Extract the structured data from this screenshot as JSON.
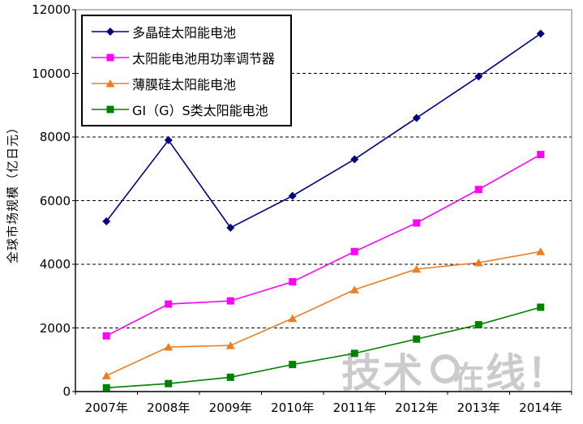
{
  "chart_data": {
    "type": "line",
    "title": "",
    "xlabel": "",
    "ylabel": "全球市场规模（亿日元）",
    "categories": [
      "2007年",
      "2008年",
      "2009年",
      "2010年",
      "2011年",
      "2012年",
      "2013年",
      "2014年"
    ],
    "ylim": [
      0,
      12000
    ],
    "yticks": [
      0,
      2000,
      4000,
      6000,
      8000,
      10000,
      12000
    ],
    "grid": "horizontal-dashed",
    "legend_position": "top-left-inside",
    "series": [
      {
        "name": "多晶硅太阳能电池",
        "color": "#000080",
        "marker": "diamond",
        "values": [
          5350,
          7900,
          5150,
          6150,
          7300,
          8600,
          9900,
          11250
        ]
      },
      {
        "name": "太阳能电池用功率调节器",
        "color": "#FF00FF",
        "marker": "square",
        "values": [
          1750,
          2750,
          2850,
          3450,
          4400,
          5300,
          6350,
          7450
        ]
      },
      {
        "name": "薄膜硅太阳能电池",
        "color": "#EE7D22",
        "marker": "triangle",
        "values": [
          500,
          1400,
          1450,
          2300,
          3200,
          3850,
          4050,
          4400
        ]
      },
      {
        "name": "GI（G）S类太阳能电池",
        "color": "#008000",
        "marker": "square",
        "values": [
          120,
          250,
          450,
          850,
          1200,
          1650,
          2100,
          2650
        ]
      }
    ]
  },
  "watermark": {
    "prefix": "技术",
    "mid": "在",
    "suffix": "线！"
  }
}
